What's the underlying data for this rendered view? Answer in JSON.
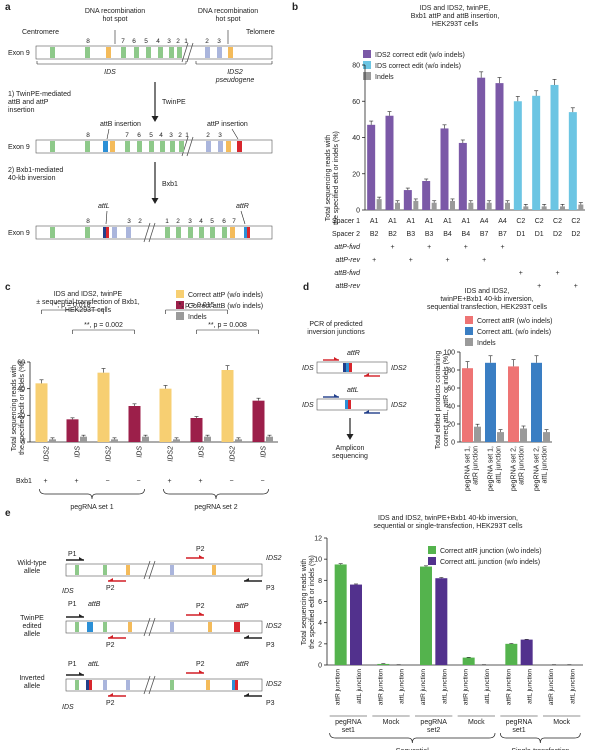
{
  "colors": {
    "purple": "#7b59a7",
    "cyan": "#6cc5e3",
    "gray": "#9a9a9a",
    "orange": "#f7cf72",
    "maroon": "#9c1f4a",
    "pink": "#ee7474",
    "blue": "#3a7ec3",
    "green": "#54b34d",
    "dpurple": "#52318d",
    "red": "#d21f26",
    "exon_green": "#8ec98a",
    "exon_lblue": "#aab5dc",
    "exon_orange": "#f4bb5a",
    "attB_blue": "#2b8fd6",
    "attP_red": "#d8262d",
    "navy": "#223f8a"
  },
  "panel_a": {
    "label": "a",
    "centromere": "Centromere",
    "telomere": "Telomere",
    "hotspot1": "DNA recombination\nhot spot",
    "hotspot2": "DNA recombination\nhot spot",
    "exon9": "Exon 9",
    "nums_ids": [
      "8",
      "7",
      "6",
      "5",
      "4",
      "3",
      "2",
      "1"
    ],
    "nums_ids2": [
      "2",
      "3"
    ],
    "ids": "IDS",
    "ids2": "IDS2\npseudogene",
    "step1": "1) TwinPE-mediated\nattB and attP\ninsertion",
    "twinpe": "TwinPE",
    "attB_ins": "attB insertion",
    "attP_ins": "attP insertion",
    "step2": "2) Bxb1-mediated\n40-kb inversion",
    "bxb1": "Bxb1",
    "attL": "attL",
    "attR": "attR",
    "inv_nums_left": [
      "8",
      "3",
      "2"
    ],
    "inv_nums_right": [
      "1",
      "2",
      "3",
      "4",
      "5",
      "6",
      "7"
    ]
  },
  "panel_b": {
    "label": "b",
    "title": "IDS and IDS2, twinPE,\nBxb1 attP and attB insertion,\nHEK293T cells",
    "ylabel": "Total sequencing reads with\nthe specified edit or indels (%)",
    "legend": [
      "IDS2 correct edit (w/o indels)",
      "IDS correct edit (w/o indels)",
      "Indels"
    ],
    "row_labels": [
      "Spacer 1",
      "Spacer 2",
      "attP-fwd",
      "attP-rev",
      "attB-fwd",
      "attB-rev"
    ],
    "spacer1": [
      "A1",
      "A1",
      "A1",
      "A1",
      "A1",
      "A1",
      "A4",
      "A4",
      "C2",
      "C2",
      "C2",
      "C2"
    ],
    "spacer2": [
      "B2",
      "B2",
      "B3",
      "B3",
      "B4",
      "B4",
      "B7",
      "B7",
      "D1",
      "D1",
      "D2",
      "D2"
    ],
    "attP_fwd": [
      "",
      "+",
      "",
      "+",
      "",
      "+",
      "",
      "+",
      "",
      "",
      "",
      ""
    ],
    "attP_rev": [
      "+",
      "",
      "+",
      "",
      "+",
      "",
      "+",
      "",
      "",
      "",
      "",
      ""
    ],
    "attB_fwd": [
      "",
      "",
      "",
      "",
      "",
      "",
      "",
      "",
      "+",
      "",
      "+",
      ""
    ],
    "attB_rev": [
      "",
      "",
      "",
      "",
      "",
      "",
      "",
      "",
      "",
      "+",
      "",
      "+"
    ]
  },
  "panel_c": {
    "label": "c",
    "title": "IDS and IDS2, twinPE\n± sequential transfection of Bxb1,\nHEK293T cells",
    "ylabel": "Total sequencing reads with\nthe specified edit or indels (%)",
    "legend": [
      "Correct attP (w/o indels)",
      "Correct attB (w/o indels)",
      "Indels"
    ],
    "cats": [
      "IDS2",
      "IDS",
      "IDS2",
      "IDS",
      "IDS2",
      "IDS",
      "IDS2",
      "IDS"
    ],
    "bxb1_label": "Bxb1",
    "bxb1": [
      "+",
      "+",
      "−",
      "−",
      "+",
      "+",
      "−",
      "−"
    ],
    "sig1a": "*, p = 0.018",
    "sig1b": "**, p = 0.002",
    "sig2a": "*, p = 0.015",
    "sig2b": "**, p = 0.008",
    "group1": "pegRNA set 1",
    "group2": "pegRNA set 2"
  },
  "panel_d": {
    "label": "d",
    "title": "IDS and IDS2,\ntwinPE+Bxb1 40-kb inversion,\nsequential transfection, HEK293T cells",
    "pcr": "PCR of predicted\ninversion junctions",
    "attR": "attR",
    "attL": "attL",
    "ids": "IDS",
    "ids2": "IDS2",
    "amplicon": "Amplicon\nsequencing",
    "ylabel": "Total edited products containing\ncorrect attL, attR or indels (%)",
    "legend": [
      "Correct attR (w/o indels)",
      "Correct attL (w/o indels)",
      "Indels"
    ],
    "cats": [
      "pegRNA set 1,\nattR junction",
      "pegRNA set 1,\nattL junction",
      "pegRNA set 2,\nattR junction",
      "pegRNA set 2,\nattL junction"
    ]
  },
  "panel_e": {
    "label": "e",
    "rows": [
      "Wild-type\nallele",
      "TwinPE\nedited\nallele",
      "Inverted\nallele"
    ],
    "p1": "P1",
    "p2": "P2",
    "p3": "P3",
    "ids": "IDS",
    "ids2": "IDS2",
    "attB": "attB",
    "attP": "attP",
    "attL": "attL",
    "attR": "attR",
    "title": "IDS and IDS2, twinPE+Bxb1 40-kb inversion,\nsequential or single-transfection, HEK293T cells",
    "ylabel": "Total sequencing reads with\nthe specified edit or indels (%)",
    "legend": [
      "Correct attR junction (w/o indels)",
      "Correct attL junction (w/o indels)"
    ],
    "junctions": [
      "attR junction",
      "attL junction",
      "attR junction",
      "attL junction",
      "attR junction",
      "attL junction",
      "attR junction",
      "attL junction",
      "attR junction",
      "attL junction",
      "attR junction",
      "attL junction"
    ],
    "groups": [
      "pegRNA\nset1",
      "Mock",
      "pegRNA\nset2",
      "Mock",
      "pegRNA\nset1",
      "Mock"
    ],
    "super1": "Sequential\ntwinPE+Bxb1 plasmids",
    "super2": "Single-transfection\ntwinPE+Bxb1 RNA"
  },
  "chart_data": [
    {
      "type": "bar",
      "panel": "b",
      "ylim": [
        0,
        80
      ],
      "yticks": [
        0,
        20,
        40,
        60,
        80
      ],
      "series": [
        {
          "name": "IDS2 correct edit (w/o indels)",
          "values": [
            47,
            52,
            11,
            16,
            45,
            37,
            73,
            70,
            null,
            null,
            null,
            null
          ]
        },
        {
          "name": "IDS correct edit (w/o indels)",
          "values": [
            null,
            null,
            null,
            null,
            null,
            null,
            null,
            null,
            60,
            63,
            69,
            54
          ]
        },
        {
          "name": "Indels",
          "values": [
            6,
            4,
            5,
            4,
            5,
            4,
            4,
            4,
            2,
            2,
            2,
            3
          ]
        }
      ]
    },
    {
      "type": "bar",
      "panel": "c",
      "ylim": [
        0,
        60
      ],
      "yticks": [
        0,
        20,
        40,
        60
      ],
      "series": [
        {
          "name": "Correct attP (w/o indels)",
          "values": [
            44,
            null,
            52,
            null,
            40,
            null,
            54,
            null
          ]
        },
        {
          "name": "Correct attB (w/o indels)",
          "values": [
            null,
            17,
            null,
            27,
            null,
            18,
            null,
            31
          ]
        },
        {
          "name": "Indels",
          "values": [
            2,
            4,
            2,
            4,
            2,
            4,
            2,
            4
          ]
        }
      ]
    },
    {
      "type": "bar",
      "panel": "d",
      "ylim": [
        0,
        100
      ],
      "yticks": [
        0,
        20,
        40,
        60,
        80,
        100
      ],
      "series": [
        {
          "name": "Correct attR (w/o indels)",
          "values": [
            82,
            null,
            84,
            null
          ]
        },
        {
          "name": "Correct attL (w/o indels)",
          "values": [
            null,
            88,
            null,
            88
          ]
        },
        {
          "name": "Indels",
          "values": [
            17,
            11,
            15,
            11
          ]
        }
      ]
    },
    {
      "type": "bar",
      "panel": "e",
      "ylim": [
        0,
        12
      ],
      "yticks": [
        0,
        2,
        4,
        6,
        8,
        10,
        12
      ],
      "series": [
        {
          "name": "Correct attR junction (w/o indels)",
          "values": [
            9.5,
            null,
            0.1,
            null,
            9.3,
            null,
            0.7,
            null,
            2.0,
            null,
            0,
            null
          ]
        },
        {
          "name": "Correct attL junction (w/o indels)",
          "values": [
            null,
            7.6,
            null,
            0,
            null,
            8.2,
            null,
            0,
            null,
            2.4,
            null,
            0
          ]
        }
      ]
    }
  ]
}
